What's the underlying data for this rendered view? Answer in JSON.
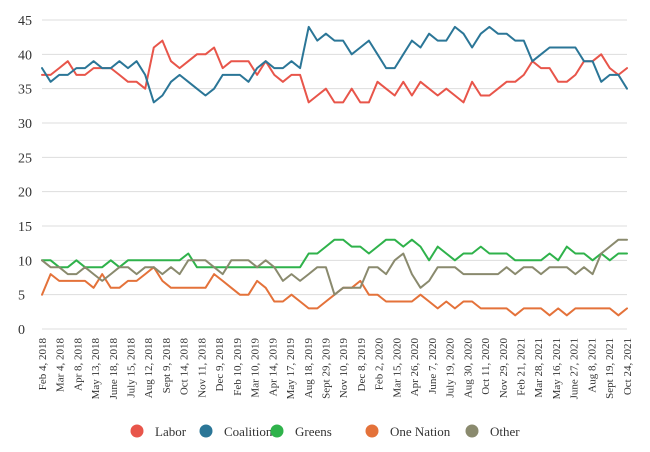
{
  "chart_data": {
    "type": "line",
    "title": "",
    "xlabel": "",
    "ylabel": "",
    "ylim": [
      0,
      45
    ],
    "yticks": [
      0,
      5,
      10,
      15,
      20,
      25,
      30,
      35,
      40,
      45
    ],
    "grid": true,
    "legend_position": "bottom",
    "x_tick_labels": [
      "Feb 4, 2018",
      "Mar 4, 2018",
      "Apr 8, 2018",
      "May 13, 2018",
      "June 18, 2018",
      "July 15, 2018",
      "Aug 12, 2018",
      "Sept 9, 2018",
      "Oct 14, 2018",
      "Nov 11, 2018",
      "Dec 9, 2018",
      "Feb 10, 2019",
      "Mar 10, 2019",
      "Apr 14, 2019",
      "May 17, 2019",
      "Aug 18, 2019",
      "Sept 29, 2019",
      "Nov 10, 2019",
      "Dec 8, 2019",
      "Feb 2, 2020",
      "Mar 15, 2020",
      "Apr 26, 2020",
      "June 7, 2020",
      "July 19, 2020",
      "Aug 30, 2020",
      "Oct 11, 2020",
      "Nov 29, 2020",
      "Feb 21, 2021",
      "Mar 28, 2021",
      "May 16, 2021",
      "June 27, 2021",
      "Aug 8, 2021",
      "Sept 19, 2021",
      "Oct 24, 2021"
    ],
    "series": [
      {
        "name": "Labor",
        "color": "#e8554a",
        "values": [
          37,
          37,
          38,
          39,
          37,
          37,
          38,
          38,
          38,
          37,
          36,
          36,
          35,
          41,
          42,
          39,
          38,
          39,
          40,
          40,
          41,
          38,
          39,
          39,
          39,
          37,
          39,
          37,
          36,
          37,
          37,
          33,
          34,
          35,
          33,
          33,
          35,
          33,
          33,
          36,
          35,
          34,
          36,
          34,
          36,
          35,
          34,
          35,
          34,
          33,
          36,
          34,
          34,
          35,
          36,
          36,
          37,
          39,
          38,
          38,
          36,
          36,
          37,
          39,
          39,
          40,
          38,
          37,
          38
        ]
      },
      {
        "name": "Coalition",
        "color": "#2b7697",
        "values": [
          38,
          36,
          37,
          37,
          38,
          38,
          39,
          38,
          38,
          39,
          38,
          39,
          37,
          33,
          34,
          36,
          37,
          36,
          35,
          34,
          35,
          37,
          37,
          37,
          36,
          38,
          39,
          38,
          38,
          39,
          38,
          44,
          42,
          43,
          42,
          42,
          40,
          41,
          42,
          40,
          38,
          38,
          40,
          42,
          41,
          43,
          42,
          42,
          44,
          43,
          41,
          43,
          44,
          43,
          43,
          42,
          42,
          39,
          40,
          41,
          41,
          41,
          41,
          39,
          39,
          36,
          37,
          37,
          35
        ]
      },
      {
        "name": "Greens",
        "color": "#2fb24b",
        "values": [
          10,
          10,
          9,
          9,
          10,
          9,
          9,
          9,
          10,
          9,
          10,
          10,
          10,
          10,
          10,
          10,
          10,
          11,
          9,
          9,
          9,
          9,
          9,
          9,
          9,
          9,
          9,
          9,
          9,
          9,
          9,
          11,
          11,
          12,
          13,
          13,
          12,
          12,
          11,
          12,
          13,
          13,
          12,
          13,
          12,
          10,
          12,
          11,
          10,
          11,
          11,
          12,
          11,
          11,
          11,
          10,
          10,
          10,
          10,
          11,
          10,
          12,
          11,
          11,
          10,
          11,
          10,
          11,
          11
        ]
      },
      {
        "name": "One Nation",
        "color": "#e4723a",
        "values": [
          5,
          8,
          7,
          7,
          7,
          7,
          6,
          8,
          6,
          6,
          7,
          7,
          8,
          9,
          7,
          6,
          6,
          6,
          6,
          6,
          8,
          7,
          6,
          5,
          5,
          7,
          6,
          4,
          4,
          5,
          4,
          3,
          3,
          4,
          5,
          6,
          6,
          7,
          5,
          5,
          4,
          4,
          4,
          4,
          5,
          4,
          3,
          4,
          3,
          4,
          4,
          3,
          3,
          3,
          3,
          2,
          3,
          3,
          3,
          2,
          3,
          2,
          3,
          3,
          3,
          3,
          3,
          2,
          3
        ]
      },
      {
        "name": "Other",
        "color": "#8a8a6e",
        "values": [
          10,
          9,
          9,
          8,
          8,
          9,
          8,
          7,
          8,
          9,
          9,
          8,
          9,
          9,
          8,
          9,
          8,
          10,
          10,
          10,
          9,
          8,
          10,
          10,
          10,
          9,
          10,
          9,
          7,
          8,
          7,
          8,
          9,
          9,
          5,
          6,
          6,
          6,
          9,
          9,
          8,
          10,
          11,
          8,
          6,
          7,
          9,
          9,
          9,
          8,
          8,
          8,
          8,
          8,
          9,
          8,
          9,
          9,
          8,
          9,
          9,
          9,
          8,
          9,
          8,
          11,
          12,
          13,
          13
        ]
      }
    ]
  }
}
